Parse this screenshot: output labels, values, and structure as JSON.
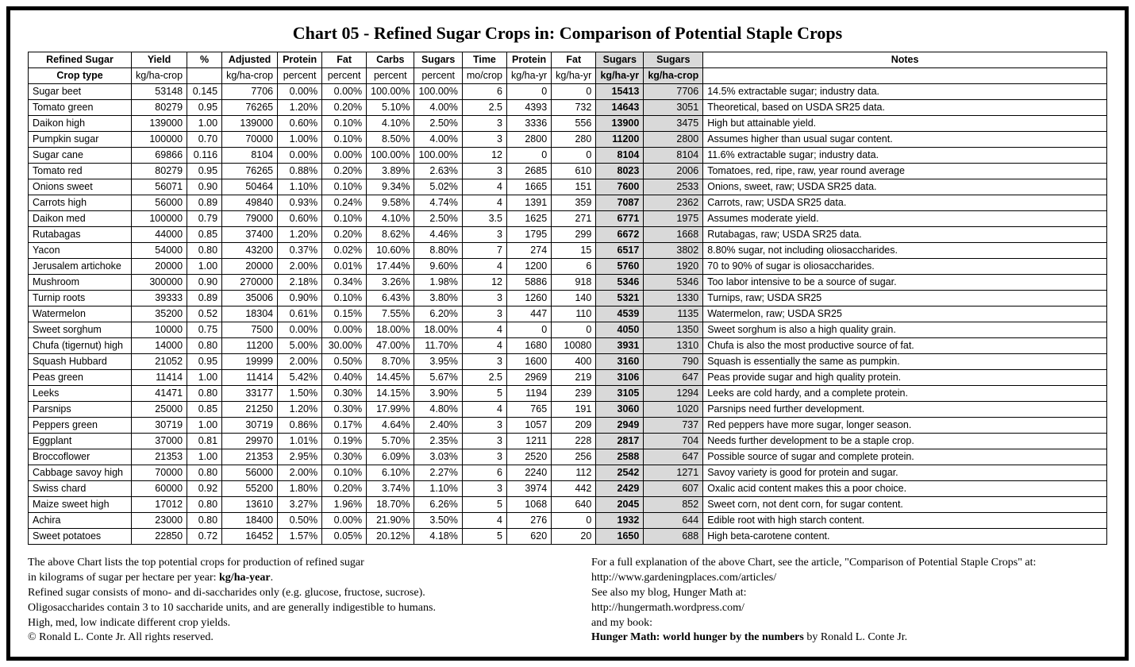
{
  "title": "Chart 05 - Refined Sugar Crops in: Comparison of Potential Staple Crops",
  "headers1": [
    "Refined Sugar",
    "Yield",
    "%",
    "Adjusted",
    "Protein",
    "Fat",
    "Carbs",
    "Sugars",
    "Time",
    "Protein",
    "Fat",
    "Sugars",
    "Sugars",
    "Notes"
  ],
  "headers2": [
    "Crop type",
    "kg/ha-crop",
    "",
    "kg/ha-crop",
    "percent",
    "percent",
    "percent",
    "percent",
    "mo/crop",
    "kg/ha-yr",
    "kg/ha-yr",
    "kg/ha-yr",
    "kg/ha-crop",
    ""
  ],
  "highlight_cols": [
    11,
    12
  ],
  "bold_highlight_col": 11,
  "rows": [
    [
      "Sugar beet",
      "53148",
      "0.145",
      "7706",
      "0.00%",
      "0.00%",
      "100.00%",
      "100.00%",
      "6",
      "0",
      "0",
      "15413",
      "7706",
      "14.5% extractable sugar; industry data."
    ],
    [
      "Tomato green",
      "80279",
      "0.95",
      "76265",
      "1.20%",
      "0.20%",
      "5.10%",
      "4.00%",
      "2.5",
      "4393",
      "732",
      "14643",
      "3051",
      "Theoretical, based on USDA SR25 data."
    ],
    [
      "Daikon high",
      "139000",
      "1.00",
      "139000",
      "0.60%",
      "0.10%",
      "4.10%",
      "2.50%",
      "3",
      "3336",
      "556",
      "13900",
      "3475",
      "High but attainable yield."
    ],
    [
      "Pumpkin sugar",
      "100000",
      "0.70",
      "70000",
      "1.00%",
      "0.10%",
      "8.50%",
      "4.00%",
      "3",
      "2800",
      "280",
      "11200",
      "2800",
      "Assumes higher than usual sugar content."
    ],
    [
      "Sugar cane",
      "69866",
      "0.116",
      "8104",
      "0.00%",
      "0.00%",
      "100.00%",
      "100.00%",
      "12",
      "0",
      "0",
      "8104",
      "8104",
      "11.6% extractable sugar; industry data."
    ],
    [
      "Tomato red",
      "80279",
      "0.95",
      "76265",
      "0.88%",
      "0.20%",
      "3.89%",
      "2.63%",
      "3",
      "2685",
      "610",
      "8023",
      "2006",
      "Tomatoes, red, ripe, raw, year round average"
    ],
    [
      "Onions sweet",
      "56071",
      "0.90",
      "50464",
      "1.10%",
      "0.10%",
      "9.34%",
      "5.02%",
      "4",
      "1665",
      "151",
      "7600",
      "2533",
      "Onions, sweet, raw; USDA SR25 data."
    ],
    [
      "Carrots high",
      "56000",
      "0.89",
      "49840",
      "0.93%",
      "0.24%",
      "9.58%",
      "4.74%",
      "4",
      "1391",
      "359",
      "7087",
      "2362",
      "Carrots, raw; USDA SR25 data."
    ],
    [
      "Daikon med",
      "100000",
      "0.79",
      "79000",
      "0.60%",
      "0.10%",
      "4.10%",
      "2.50%",
      "3.5",
      "1625",
      "271",
      "6771",
      "1975",
      "Assumes moderate yield."
    ],
    [
      "Rutabagas",
      "44000",
      "0.85",
      "37400",
      "1.20%",
      "0.20%",
      "8.62%",
      "4.46%",
      "3",
      "1795",
      "299",
      "6672",
      "1668",
      "Rutabagas, raw; USDA SR25 data."
    ],
    [
      "Yacon",
      "54000",
      "0.80",
      "43200",
      "0.37%",
      "0.02%",
      "10.60%",
      "8.80%",
      "7",
      "274",
      "15",
      "6517",
      "3802",
      "8.80% sugar, not including oliosaccharides."
    ],
    [
      "Jerusalem artichoke",
      "20000",
      "1.00",
      "20000",
      "2.00%",
      "0.01%",
      "17.44%",
      "9.60%",
      "4",
      "1200",
      "6",
      "5760",
      "1920",
      "70 to 90% of sugar is oliosaccharides."
    ],
    [
      "Mushroom",
      "300000",
      "0.90",
      "270000",
      "2.18%",
      "0.34%",
      "3.26%",
      "1.98%",
      "12",
      "5886",
      "918",
      "5346",
      "5346",
      "Too labor intensive to be a source of sugar."
    ],
    [
      "Turnip roots",
      "39333",
      "0.89",
      "35006",
      "0.90%",
      "0.10%",
      "6.43%",
      "3.80%",
      "3",
      "1260",
      "140",
      "5321",
      "1330",
      "Turnips, raw; USDA SR25"
    ],
    [
      "Watermelon",
      "35200",
      "0.52",
      "18304",
      "0.61%",
      "0.15%",
      "7.55%",
      "6.20%",
      "3",
      "447",
      "110",
      "4539",
      "1135",
      "Watermelon, raw; USDA SR25"
    ],
    [
      "Sweet sorghum",
      "10000",
      "0.75",
      "7500",
      "0.00%",
      "0.00%",
      "18.00%",
      "18.00%",
      "4",
      "0",
      "0",
      "4050",
      "1350",
      "Sweet sorghum is also a high quality grain."
    ],
    [
      "Chufa (tigernut) high",
      "14000",
      "0.80",
      "11200",
      "5.00%",
      "30.00%",
      "47.00%",
      "11.70%",
      "4",
      "1680",
      "10080",
      "3931",
      "1310",
      "Chufa is also the most productive source of fat."
    ],
    [
      "Squash Hubbard",
      "21052",
      "0.95",
      "19999",
      "2.00%",
      "0.50%",
      "8.70%",
      "3.95%",
      "3",
      "1600",
      "400",
      "3160",
      "790",
      "Squash is essentially the same as pumpkin."
    ],
    [
      "Peas green",
      "11414",
      "1.00",
      "11414",
      "5.42%",
      "0.40%",
      "14.45%",
      "5.67%",
      "2.5",
      "2969",
      "219",
      "3106",
      "647",
      "Peas provide sugar and high quality protein."
    ],
    [
      "Leeks",
      "41471",
      "0.80",
      "33177",
      "1.50%",
      "0.30%",
      "14.15%",
      "3.90%",
      "5",
      "1194",
      "239",
      "3105",
      "1294",
      "Leeks are cold hardy, and a complete protein."
    ],
    [
      "Parsnips",
      "25000",
      "0.85",
      "21250",
      "1.20%",
      "0.30%",
      "17.99%",
      "4.80%",
      "4",
      "765",
      "191",
      "3060",
      "1020",
      "Parsnips need further development."
    ],
    [
      "Peppers green",
      "30719",
      "1.00",
      "30719",
      "0.86%",
      "0.17%",
      "4.64%",
      "2.40%",
      "3",
      "1057",
      "209",
      "2949",
      "737",
      "Red peppers have more sugar, longer season."
    ],
    [
      "Eggplant",
      "37000",
      "0.81",
      "29970",
      "1.01%",
      "0.19%",
      "5.70%",
      "2.35%",
      "3",
      "1211",
      "228",
      "2817",
      "704",
      "Needs further development to be a staple crop."
    ],
    [
      "Broccoflower",
      "21353",
      "1.00",
      "21353",
      "2.95%",
      "0.30%",
      "6.09%",
      "3.03%",
      "3",
      "2520",
      "256",
      "2588",
      "647",
      "Possible source of sugar and complete protein."
    ],
    [
      "Cabbage savoy high",
      "70000",
      "0.80",
      "56000",
      "2.00%",
      "0.10%",
      "6.10%",
      "2.27%",
      "6",
      "2240",
      "112",
      "2542",
      "1271",
      "Savoy variety is good for protein and sugar."
    ],
    [
      "Swiss chard",
      "60000",
      "0.92",
      "55200",
      "1.80%",
      "0.20%",
      "3.74%",
      "1.10%",
      "3",
      "3974",
      "442",
      "2429",
      "607",
      "Oxalic acid content makes this a poor choice."
    ],
    [
      "Maize sweet high",
      "17012",
      "0.80",
      "13610",
      "3.27%",
      "1.96%",
      "18.70%",
      "6.26%",
      "5",
      "1068",
      "640",
      "2045",
      "852",
      "Sweet corn, not dent corn, for sugar content."
    ],
    [
      "Achira",
      "23000",
      "0.80",
      "18400",
      "0.50%",
      "0.00%",
      "21.90%",
      "3.50%",
      "4",
      "276",
      "0",
      "1932",
      "644",
      "Edible root with high starch content."
    ],
    [
      "Sweet potatoes",
      "22850",
      "0.72",
      "16452",
      "1.57%",
      "0.05%",
      "20.12%",
      "4.18%",
      "5",
      "620",
      "20",
      "1650",
      "688",
      "High beta-carotene content."
    ]
  ],
  "footer_left": [
    "The above Chart lists the top potential crops for production of refined sugar",
    "in kilograms of sugar per hectare per year: <b>kg/ha-year</b>.",
    "Refined sugar consists of mono- and di-saccharides only (e.g. glucose, fructose, sucrose).",
    "Oligosaccharides contain 3 to 10 saccharide units, and are generally indigestible to humans.",
    "High, med, low indicate different crop yields.",
    "© Ronald L. Conte Jr. All rights reserved."
  ],
  "footer_right": [
    "For a full explanation of the above Chart, see the article, \"Comparison of Potential Staple Crops\" at:",
    "http://www.gardeningplaces.com/articles/",
    "See also my blog, Hunger Math at:",
    "http://hungermath.wordpress.com/",
    "and my book:",
    "<b>Hunger Math: world hunger by the numbers</b> by Ronald L. Conte Jr."
  ],
  "col_widths": [
    "130px",
    "66px",
    "44px",
    "66px",
    "56px",
    "56px",
    "60px",
    "60px",
    "54px",
    "56px",
    "56px",
    "60px",
    "66px",
    "auto"
  ]
}
